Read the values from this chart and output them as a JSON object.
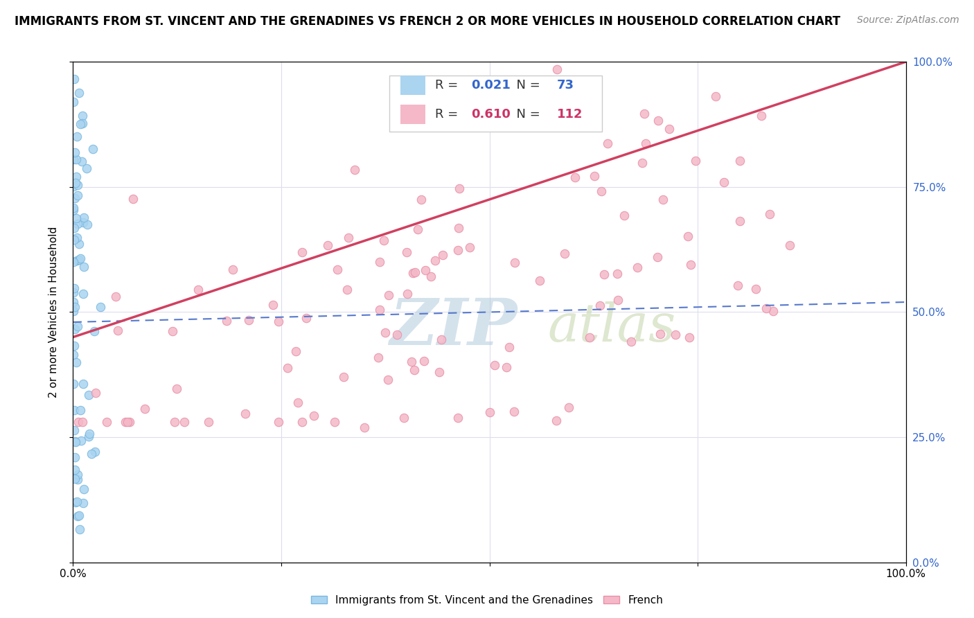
{
  "title": "IMMIGRANTS FROM ST. VINCENT AND THE GRENADINES VS FRENCH 2 OR MORE VEHICLES IN HOUSEHOLD CORRELATION CHART",
  "source": "Source: ZipAtlas.com",
  "ylabel": "2 or more Vehicles in Household",
  "legend_blue_R": "0.021",
  "legend_blue_N": "73",
  "legend_pink_R": "0.610",
  "legend_pink_N": "112",
  "blue_label": "Immigrants from St. Vincent and the Grenadines",
  "pink_label": "French",
  "blue_color": "#aad4f0",
  "blue_edge_color": "#7ab8e0",
  "pink_color": "#f4b8c8",
  "pink_edge_color": "#e890a8",
  "blue_line_color": "#5577cc",
  "pink_line_color": "#d04060",
  "watermark_zip": "ZIP",
  "watermark_atlas": "atlas",
  "watermark_color_zip": "#b8cfe0",
  "watermark_color_atlas": "#c8d8b0",
  "title_fontsize": 12,
  "source_fontsize": 10,
  "ylabel_fontsize": 11
}
